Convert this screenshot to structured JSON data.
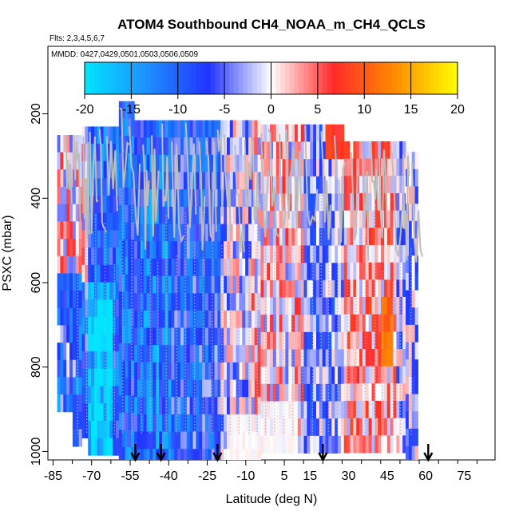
{
  "chart_data": {
    "type": "heatmap",
    "title": "ATOM4 Southbound CH4_NOAA_m_CH4_QCLS",
    "flights_label": "Flts: 2,3,4,5,6,7",
    "dates_label": "MMDD: 0427,0429,0501,0503,0506,0509",
    "xlabel": "Latitude (deg N)",
    "ylabel": "PSXC (mbar)",
    "xlim": [
      -87,
      87
    ],
    "ylim": [
      1020,
      40
    ],
    "x_ticks": [
      -85,
      -70,
      -55,
      -40,
      -25,
      -10,
      5,
      15,
      30,
      45,
      60,
      75
    ],
    "x_tick_labels": [
      "-85",
      "-70",
      "-55",
      "-40",
      "-25",
      "-10",
      "5",
      "15",
      "30",
      "45",
      "60",
      "75"
    ],
    "y_ticks": [
      200,
      400,
      600,
      800,
      1000
    ],
    "y_tick_labels": [
      "200",
      "400",
      "600",
      "800",
      "1000"
    ],
    "colorbar": {
      "range": [
        -20,
        20
      ],
      "ticks": [
        -20,
        -15,
        -10,
        -5,
        0,
        5,
        10,
        15,
        20
      ],
      "tick_labels": [
        "-20",
        "-15",
        "-10",
        "-5",
        "0",
        "5",
        "10",
        "15",
        "20"
      ],
      "colors": [
        "#00e5ff",
        "#1e90ff",
        "#2233ff",
        "#ffffff",
        "#ff2a2a",
        "#ff8c00",
        "#ffff00"
      ]
    },
    "arrow_latitudes": [
      -53,
      -43,
      -21,
      20,
      61
    ],
    "grid": false,
    "legend": "none"
  }
}
